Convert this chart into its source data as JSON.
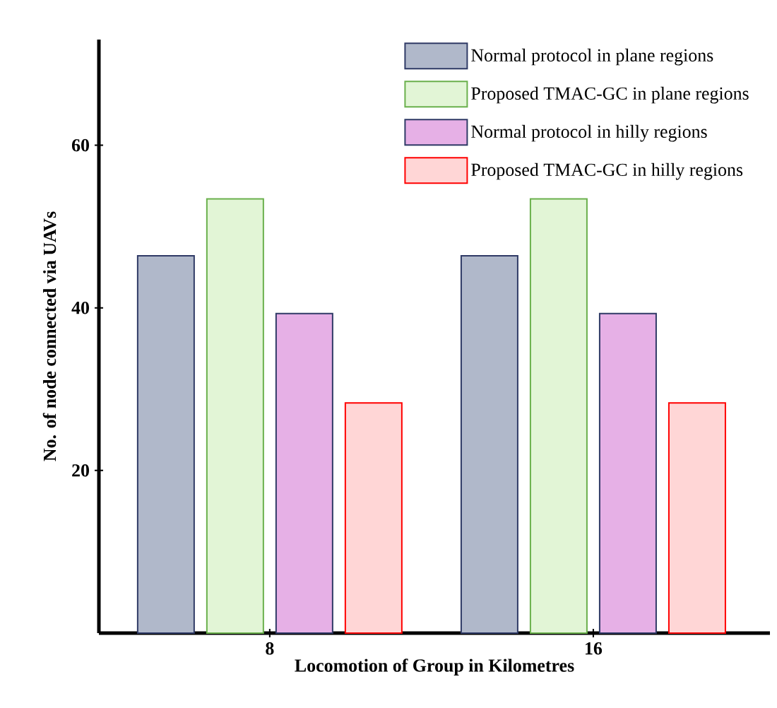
{
  "chart_data": {
    "type": "bar",
    "xlabel": "Locomotion of Group in Kilometres",
    "ylabel": "No. of node connected via UAVs",
    "categories": [
      "8",
      "16"
    ],
    "series": [
      {
        "name": "Normal protocol in plane regions",
        "color": "#b0b8ca",
        "values": [
          46.4,
          46.4
        ]
      },
      {
        "name": "Proposed TMAC-GC in plane regions",
        "color": "#e2f5d6",
        "values": [
          53.4,
          53.4
        ]
      },
      {
        "name": "Normal protocol in hilly regions",
        "color": "#e6b0e6",
        "values": [
          39.3,
          39.3
        ]
      },
      {
        "name": "Proposed TMAC-GC in hilly regions",
        "color": "#ffd6d6",
        "values": [
          28.3,
          28.3
        ]
      }
    ],
    "ylim": [
      0,
      73
    ],
    "yticks": [
      20,
      40,
      60
    ],
    "legend": "top right",
    "grid": false
  }
}
